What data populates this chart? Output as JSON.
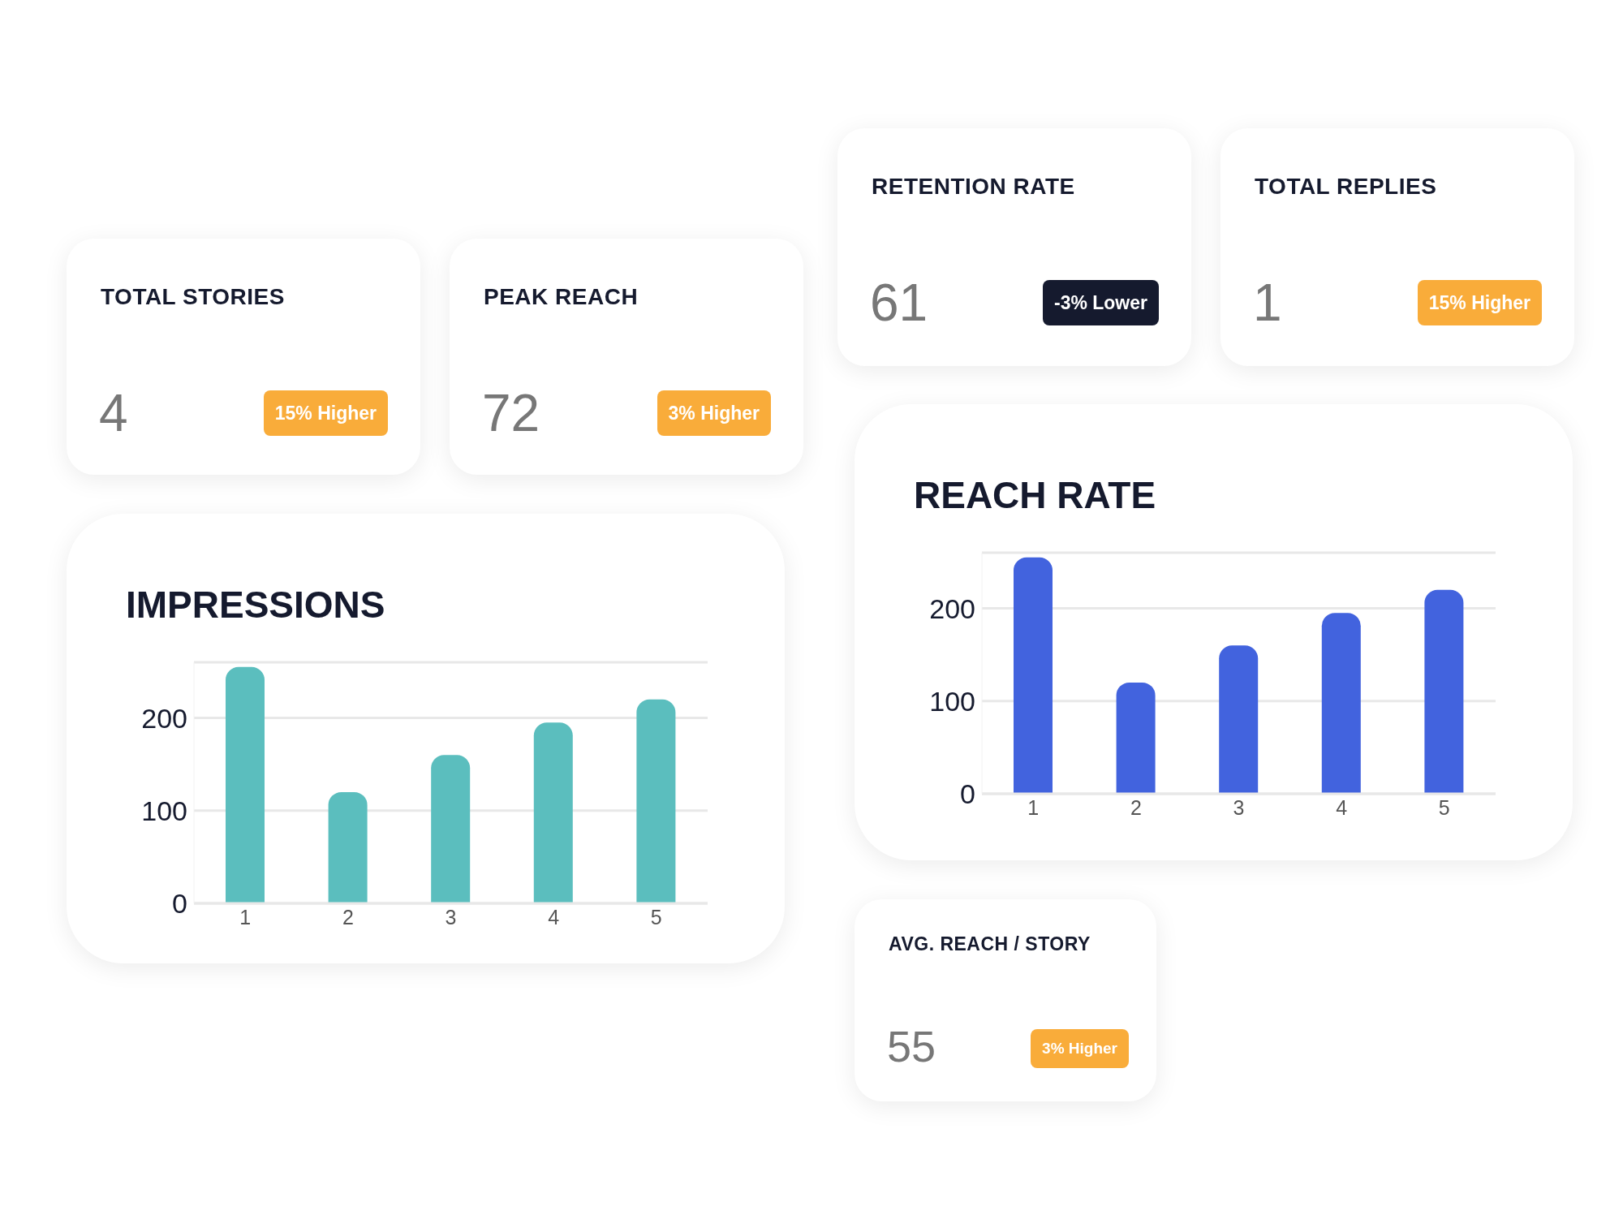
{
  "chart_data": [
    {
      "type": "other",
      "title": "TOTAL STORIES",
      "annotations": [
        "4",
        "15% Higher"
      ],
      "color": "#f9ac3a"
    },
    {
      "type": "other",
      "title": "PEAK REACH",
      "annotations": [
        "72",
        "3% Higher"
      ],
      "color": "#f9ac3a"
    },
    {
      "type": "other",
      "title": "RETENTION RATE",
      "annotations": [
        "61",
        "-3% Lower"
      ],
      "color": "#151a2e"
    },
    {
      "type": "other",
      "title": "TOTAL REPLIES",
      "annotations": [
        "1",
        "15% Higher"
      ],
      "color": "#f9ac3a"
    },
    {
      "type": "bar",
      "title": "IMPRESSIONS",
      "categories": [
        "1",
        "2",
        "3",
        "4",
        "5"
      ],
      "values": [
        255,
        120,
        160,
        195,
        220
      ],
      "color": "#5bbebe",
      "ylim": [
        0,
        260
      ],
      "yticks": [
        0,
        100,
        200
      ],
      "grid": "y"
    },
    {
      "type": "bar",
      "title": "REACH RATE",
      "categories": [
        "1",
        "2",
        "3",
        "4",
        "5"
      ],
      "values": [
        255,
        120,
        160,
        195,
        220
      ],
      "color": "#4263de",
      "ylim": [
        0,
        260
      ],
      "yticks": [
        0,
        100,
        200
      ],
      "grid": "y"
    },
    {
      "type": "other",
      "title": "AVG. REACH / STORY",
      "annotations": [
        "55",
        "3% Higher"
      ],
      "color": "#f9ac3a"
    }
  ]
}
